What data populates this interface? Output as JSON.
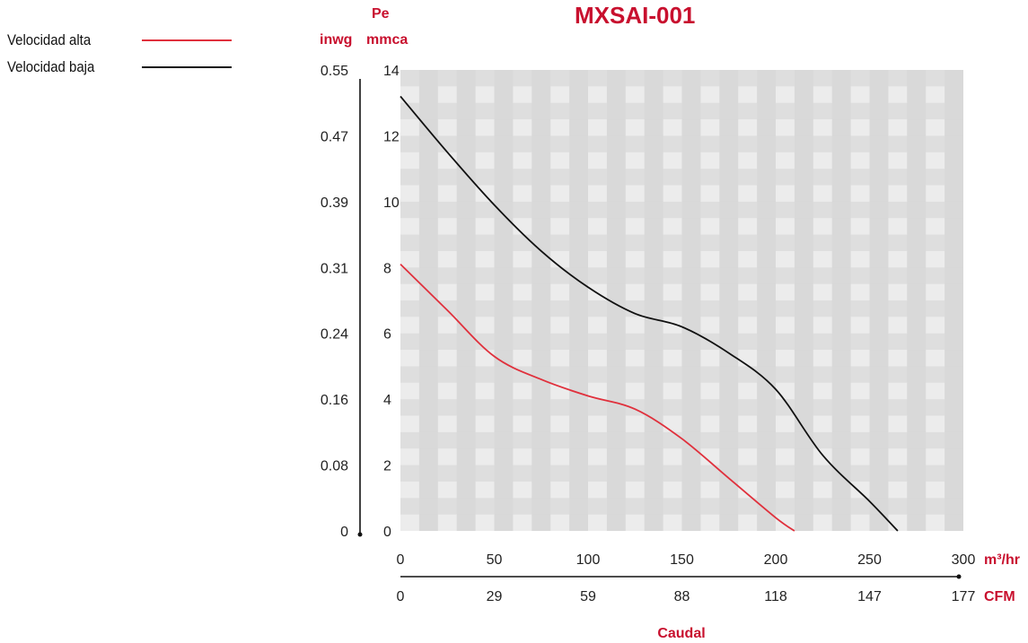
{
  "legend": {
    "items": [
      {
        "label": "Velocidad alta",
        "color": "#e0303c"
      },
      {
        "label": "Velocidad baja",
        "color": "#111111"
      }
    ]
  },
  "chart_data": {
    "type": "line",
    "title": "MXSAI-001",
    "xlabel": "Caudal",
    "x_unit": "m³/hr",
    "x2_unit": "CFM",
    "y_unit_pe": "Pe",
    "y_unit": "mmca",
    "y2_unit": "inwg",
    "xlim": [
      0,
      300
    ],
    "ylim": [
      0,
      14
    ],
    "x_ticks": [
      "0",
      "50",
      "100",
      "150",
      "200",
      "250",
      "300"
    ],
    "x2_ticks": [
      "0",
      "29",
      "59",
      "88",
      "118",
      "147",
      "177"
    ],
    "y_ticks": [
      "0",
      "2",
      "4",
      "6",
      "8",
      "10",
      "12",
      "14"
    ],
    "y2_ticks": [
      "0",
      "0.08",
      "0.16",
      "0.24",
      "0.31",
      "0.39",
      "0.47",
      "0.55"
    ],
    "grid": true,
    "legend_position": "top-left",
    "series": [
      {
        "name": "Velocidad alta",
        "color": "#e0303c",
        "x": [
          0,
          25,
          50,
          75,
          100,
          125,
          150,
          175,
          200,
          210
        ],
        "y": [
          8.1,
          6.7,
          5.3,
          4.6,
          4.1,
          3.7,
          2.8,
          1.6,
          0.4,
          0
        ]
      },
      {
        "name": "Velocidad baja",
        "color": "#111111",
        "x": [
          0,
          25,
          50,
          75,
          100,
          125,
          150,
          175,
          200,
          225,
          250,
          265
        ],
        "y": [
          13.2,
          11.5,
          9.9,
          8.5,
          7.4,
          6.6,
          6.2,
          5.4,
          4.3,
          2.3,
          0.9,
          0
        ]
      }
    ]
  }
}
